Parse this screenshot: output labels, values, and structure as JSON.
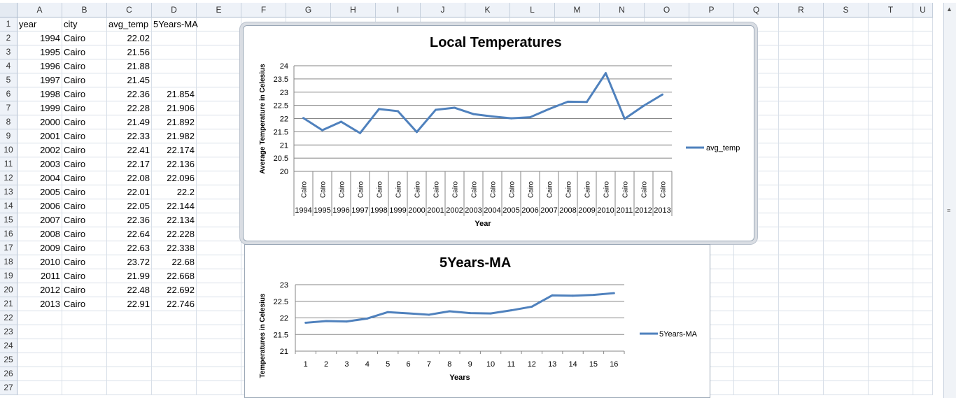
{
  "columns": [
    "A",
    "B",
    "C",
    "D",
    "E",
    "F",
    "G",
    "H",
    "I",
    "J",
    "K",
    "L",
    "M",
    "N",
    "O",
    "P",
    "Q",
    "R",
    "S",
    "T",
    "U"
  ],
  "rows": [
    "1",
    "2",
    "3",
    "4",
    "5",
    "6",
    "7",
    "8",
    "9",
    "10",
    "11",
    "12",
    "13",
    "14",
    "15",
    "16",
    "17",
    "18",
    "19",
    "20",
    "21",
    "22",
    "23",
    "24",
    "25",
    "26",
    "27"
  ],
  "table": {
    "headers": [
      "year",
      "city",
      "avg_temp",
      "5Years-MA"
    ],
    "records": [
      [
        "1994",
        "Cairo",
        "22.02",
        ""
      ],
      [
        "1995",
        "Cairo",
        "21.56",
        ""
      ],
      [
        "1996",
        "Cairo",
        "21.88",
        ""
      ],
      [
        "1997",
        "Cairo",
        "21.45",
        ""
      ],
      [
        "1998",
        "Cairo",
        "22.36",
        "21.854"
      ],
      [
        "1999",
        "Cairo",
        "22.28",
        "21.906"
      ],
      [
        "2000",
        "Cairo",
        "21.49",
        "21.892"
      ],
      [
        "2001",
        "Cairo",
        "22.33",
        "21.982"
      ],
      [
        "2002",
        "Cairo",
        "22.41",
        "22.174"
      ],
      [
        "2003",
        "Cairo",
        "22.17",
        "22.136"
      ],
      [
        "2004",
        "Cairo",
        "22.08",
        "22.096"
      ],
      [
        "2005",
        "Cairo",
        "22.01",
        "22.2"
      ],
      [
        "2006",
        "Cairo",
        "22.05",
        "22.144"
      ],
      [
        "2007",
        "Cairo",
        "22.36",
        "22.134"
      ],
      [
        "2008",
        "Cairo",
        "22.64",
        "22.228"
      ],
      [
        "2009",
        "Cairo",
        "22.63",
        "22.338"
      ],
      [
        "2010",
        "Cairo",
        "23.72",
        "22.68"
      ],
      [
        "2011",
        "Cairo",
        "21.99",
        "22.668"
      ],
      [
        "2012",
        "Cairo",
        "22.48",
        "22.692"
      ],
      [
        "2013",
        "Cairo",
        "22.91",
        "22.746"
      ]
    ]
  },
  "colors": {
    "series": "#4f81bd",
    "grid": "#868686",
    "header_bg": "#eef2f8"
  },
  "chart_data": [
    {
      "type": "line",
      "title": "Local Temperatures",
      "xlabel": "Year",
      "ylabel": "Average Temperature in Celesius",
      "ylim": [
        20,
        24
      ],
      "yticks": [
        "20",
        "20.5",
        "21",
        "21.5",
        "22",
        "22.5",
        "23",
        "23.5",
        "24"
      ],
      "category_groups": [
        "1994",
        "1995",
        "1996",
        "1997",
        "1998",
        "1999",
        "2000",
        "2001",
        "2002",
        "2003",
        "2004",
        "2005",
        "2006",
        "2007",
        "2008",
        "2009",
        "2010",
        "2011",
        "2012",
        "2013"
      ],
      "category_labels": [
        "Cairo",
        "Cairo",
        "Cairo",
        "Cairo",
        "Cairo",
        "Cairo",
        "Cairo",
        "Cairo",
        "Cairo",
        "Cairo",
        "Cairo",
        "Cairo",
        "Cairo",
        "Cairo",
        "Cairo",
        "Cairo",
        "Cairo",
        "Cairo",
        "Cairo",
        "Cairo"
      ],
      "series": [
        {
          "name": "avg_temp",
          "values": [
            22.02,
            21.56,
            21.88,
            21.45,
            22.36,
            22.28,
            21.49,
            22.33,
            22.41,
            22.17,
            22.08,
            22.01,
            22.05,
            22.36,
            22.64,
            22.63,
            23.72,
            21.99,
            22.48,
            22.91
          ]
        }
      ],
      "legend": "right",
      "grid": true
    },
    {
      "type": "line",
      "title": "5Years-MA",
      "xlabel": "Years",
      "ylabel": "Temperatures in Celesius",
      "ylim": [
        21,
        23
      ],
      "yticks": [
        "21",
        "21.5",
        "22",
        "22.5",
        "23"
      ],
      "categories": [
        "1",
        "2",
        "3",
        "4",
        "5",
        "6",
        "7",
        "8",
        "9",
        "10",
        "11",
        "12",
        "13",
        "14",
        "15",
        "16"
      ],
      "series": [
        {
          "name": "5Years-MA",
          "values": [
            21.854,
            21.906,
            21.892,
            21.982,
            22.174,
            22.136,
            22.096,
            22.2,
            22.144,
            22.134,
            22.228,
            22.338,
            22.68,
            22.668,
            22.692,
            22.746
          ]
        }
      ],
      "legend": "right",
      "grid": true
    }
  ]
}
